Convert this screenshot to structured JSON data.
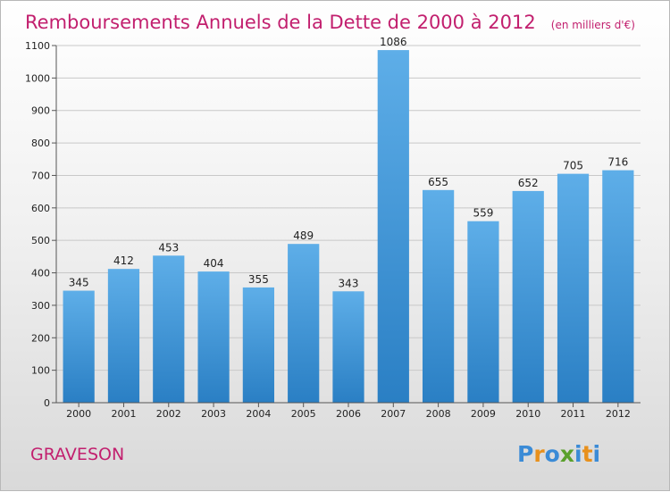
{
  "chart_data": {
    "type": "bar",
    "title": "Remboursements Annuels de la Dette de 2000 à 2012",
    "subtitle": "(en milliers d'€)",
    "categories": [
      "2000",
      "2001",
      "2002",
      "2003",
      "2004",
      "2005",
      "2006",
      "2007",
      "2008",
      "2009",
      "2010",
      "2011",
      "2012"
    ],
    "values": [
      345,
      412,
      453,
      404,
      355,
      489,
      343,
      1086,
      655,
      559,
      652,
      705,
      716
    ],
    "ylim": [
      0,
      1100
    ],
    "yticks": [
      0,
      100,
      200,
      300,
      400,
      500,
      600,
      700,
      800,
      900,
      1000,
      1100
    ],
    "grid": true,
    "legend": "none",
    "bar_color_top": "#5eaee8",
    "bar_color_bottom": "#2a7fc4"
  },
  "footer": {
    "commune": "GRAVESON",
    "logo_letters": [
      "P",
      "r",
      "o",
      "x",
      "i",
      "t",
      "i"
    ],
    "logo_colors": [
      "#3b8bd6",
      "#e8901c",
      "#3b8bd6",
      "#5aa02c",
      "#3b8bd6",
      "#e8901c",
      "#3b8bd6"
    ]
  },
  "colors": {
    "title": "#c21f6e",
    "grid": "#c8c8c8",
    "axis": "#555555"
  }
}
